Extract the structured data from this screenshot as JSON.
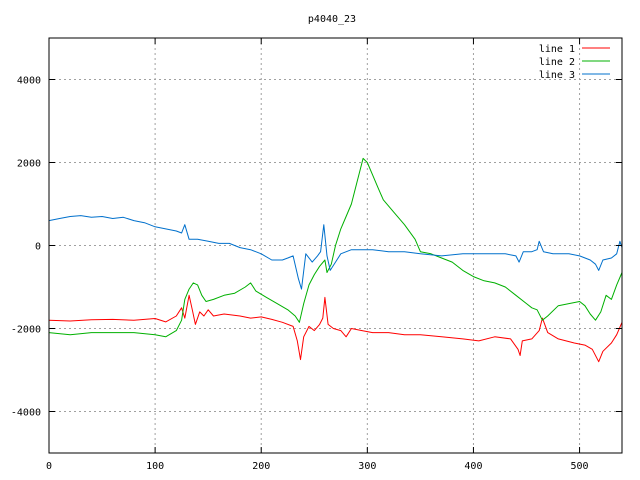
{
  "chart_data": {
    "type": "line",
    "title": "p4040_23",
    "xlabel": "",
    "ylabel": "",
    "xlim": [
      0,
      540
    ],
    "ylim": [
      -5000,
      5000
    ],
    "xticks": [
      0,
      100,
      200,
      300,
      400,
      500
    ],
    "yticks": [
      -4000,
      -2000,
      0,
      2000,
      4000
    ],
    "grid": true,
    "legend_position": "top-right",
    "series": [
      {
        "name": "line 1",
        "color": "#ff0000",
        "points": [
          [
            0,
            -1800
          ],
          [
            20,
            -1820
          ],
          [
            40,
            -1790
          ],
          [
            60,
            -1780
          ],
          [
            80,
            -1800
          ],
          [
            100,
            -1760
          ],
          [
            110,
            -1840
          ],
          [
            120,
            -1700
          ],
          [
            125,
            -1500
          ],
          [
            128,
            -1750
          ],
          [
            132,
            -1200
          ],
          [
            135,
            -1550
          ],
          [
            138,
            -1900
          ],
          [
            142,
            -1600
          ],
          [
            146,
            -1700
          ],
          [
            150,
            -1550
          ],
          [
            155,
            -1700
          ],
          [
            165,
            -1650
          ],
          [
            180,
            -1700
          ],
          [
            190,
            -1750
          ],
          [
            200,
            -1720
          ],
          [
            210,
            -1780
          ],
          [
            220,
            -1850
          ],
          [
            230,
            -1950
          ],
          [
            234,
            -2300
          ],
          [
            237,
            -2750
          ],
          [
            240,
            -2200
          ],
          [
            245,
            -1950
          ],
          [
            250,
            -2050
          ],
          [
            255,
            -1900
          ],
          [
            258,
            -1750
          ],
          [
            260,
            -1250
          ],
          [
            263,
            -1900
          ],
          [
            268,
            -2000
          ],
          [
            275,
            -2050
          ],
          [
            280,
            -2200
          ],
          [
            285,
            -2000
          ],
          [
            295,
            -2050
          ],
          [
            305,
            -2100
          ],
          [
            320,
            -2100
          ],
          [
            335,
            -2150
          ],
          [
            350,
            -2150
          ],
          [
            370,
            -2200
          ],
          [
            390,
            -2250
          ],
          [
            405,
            -2300
          ],
          [
            420,
            -2200
          ],
          [
            435,
            -2250
          ],
          [
            442,
            -2500
          ],
          [
            444,
            -2650
          ],
          [
            446,
            -2300
          ],
          [
            455,
            -2250
          ],
          [
            462,
            -2050
          ],
          [
            465,
            -1750
          ],
          [
            470,
            -2100
          ],
          [
            480,
            -2250
          ],
          [
            495,
            -2350
          ],
          [
            505,
            -2400
          ],
          [
            512,
            -2500
          ],
          [
            518,
            -2800
          ],
          [
            522,
            -2550
          ],
          [
            530,
            -2350
          ],
          [
            535,
            -2150
          ],
          [
            540,
            -1850
          ]
        ]
      },
      {
        "name": "line 2",
        "color": "#00b000",
        "points": [
          [
            0,
            -2100
          ],
          [
            20,
            -2150
          ],
          [
            40,
            -2100
          ],
          [
            60,
            -2100
          ],
          [
            80,
            -2100
          ],
          [
            100,
            -2150
          ],
          [
            110,
            -2200
          ],
          [
            120,
            -2050
          ],
          [
            125,
            -1800
          ],
          [
            128,
            -1300
          ],
          [
            132,
            -1050
          ],
          [
            136,
            -900
          ],
          [
            140,
            -950
          ],
          [
            144,
            -1200
          ],
          [
            148,
            -1350
          ],
          [
            155,
            -1300
          ],
          [
            165,
            -1200
          ],
          [
            175,
            -1150
          ],
          [
            185,
            -1000
          ],
          [
            190,
            -900
          ],
          [
            195,
            -1100
          ],
          [
            205,
            -1250
          ],
          [
            215,
            -1400
          ],
          [
            225,
            -1550
          ],
          [
            232,
            -1700
          ],
          [
            236,
            -1850
          ],
          [
            240,
            -1400
          ],
          [
            245,
            -950
          ],
          [
            250,
            -700
          ],
          [
            255,
            -500
          ],
          [
            260,
            -350
          ],
          [
            262,
            -650
          ],
          [
            266,
            -450
          ],
          [
            270,
            0
          ],
          [
            275,
            400
          ],
          [
            280,
            700
          ],
          [
            285,
            1000
          ],
          [
            290,
            1500
          ],
          [
            296,
            2100
          ],
          [
            300,
            2000
          ],
          [
            305,
            1700
          ],
          [
            310,
            1400
          ],
          [
            315,
            1100
          ],
          [
            325,
            800
          ],
          [
            335,
            500
          ],
          [
            345,
            150
          ],
          [
            350,
            -150
          ],
          [
            360,
            -200
          ],
          [
            370,
            -300
          ],
          [
            380,
            -400
          ],
          [
            390,
            -600
          ],
          [
            400,
            -750
          ],
          [
            410,
            -850
          ],
          [
            420,
            -900
          ],
          [
            430,
            -1000
          ],
          [
            440,
            -1200
          ],
          [
            450,
            -1400
          ],
          [
            455,
            -1500
          ],
          [
            460,
            -1550
          ],
          [
            465,
            -1800
          ],
          [
            470,
            -1700
          ],
          [
            480,
            -1450
          ],
          [
            490,
            -1400
          ],
          [
            500,
            -1350
          ],
          [
            505,
            -1450
          ],
          [
            510,
            -1650
          ],
          [
            515,
            -1800
          ],
          [
            520,
            -1600
          ],
          [
            525,
            -1200
          ],
          [
            530,
            -1300
          ],
          [
            535,
            -950
          ],
          [
            540,
            -650
          ]
        ]
      },
      {
        "name": "line 3",
        "color": "#0070cc",
        "points": [
          [
            0,
            600
          ],
          [
            10,
            650
          ],
          [
            20,
            700
          ],
          [
            30,
            720
          ],
          [
            40,
            680
          ],
          [
            50,
            700
          ],
          [
            60,
            650
          ],
          [
            70,
            680
          ],
          [
            80,
            600
          ],
          [
            90,
            550
          ],
          [
            100,
            450
          ],
          [
            110,
            400
          ],
          [
            120,
            350
          ],
          [
            125,
            300
          ],
          [
            128,
            500
          ],
          [
            132,
            150
          ],
          [
            140,
            150
          ],
          [
            150,
            100
          ],
          [
            160,
            50
          ],
          [
            170,
            50
          ],
          [
            180,
            -50
          ],
          [
            190,
            -100
          ],
          [
            200,
            -200
          ],
          [
            210,
            -350
          ],
          [
            220,
            -350
          ],
          [
            225,
            -300
          ],
          [
            230,
            -250
          ],
          [
            235,
            -800
          ],
          [
            238,
            -1050
          ],
          [
            242,
            -200
          ],
          [
            248,
            -400
          ],
          [
            253,
            -250
          ],
          [
            256,
            -150
          ],
          [
            259,
            500
          ],
          [
            262,
            -250
          ],
          [
            265,
            -600
          ],
          [
            270,
            -400
          ],
          [
            275,
            -200
          ],
          [
            285,
            -100
          ],
          [
            295,
            -100
          ],
          [
            305,
            -100
          ],
          [
            320,
            -150
          ],
          [
            335,
            -150
          ],
          [
            350,
            -200
          ],
          [
            370,
            -250
          ],
          [
            390,
            -200
          ],
          [
            410,
            -200
          ],
          [
            430,
            -200
          ],
          [
            440,
            -250
          ],
          [
            443,
            -400
          ],
          [
            447,
            -150
          ],
          [
            455,
            -150
          ],
          [
            460,
            -100
          ],
          [
            462,
            100
          ],
          [
            466,
            -150
          ],
          [
            475,
            -200
          ],
          [
            490,
            -200
          ],
          [
            500,
            -250
          ],
          [
            510,
            -350
          ],
          [
            515,
            -450
          ],
          [
            518,
            -600
          ],
          [
            522,
            -350
          ],
          [
            530,
            -300
          ],
          [
            535,
            -200
          ],
          [
            538,
            100
          ],
          [
            540,
            -50
          ]
        ]
      }
    ]
  }
}
